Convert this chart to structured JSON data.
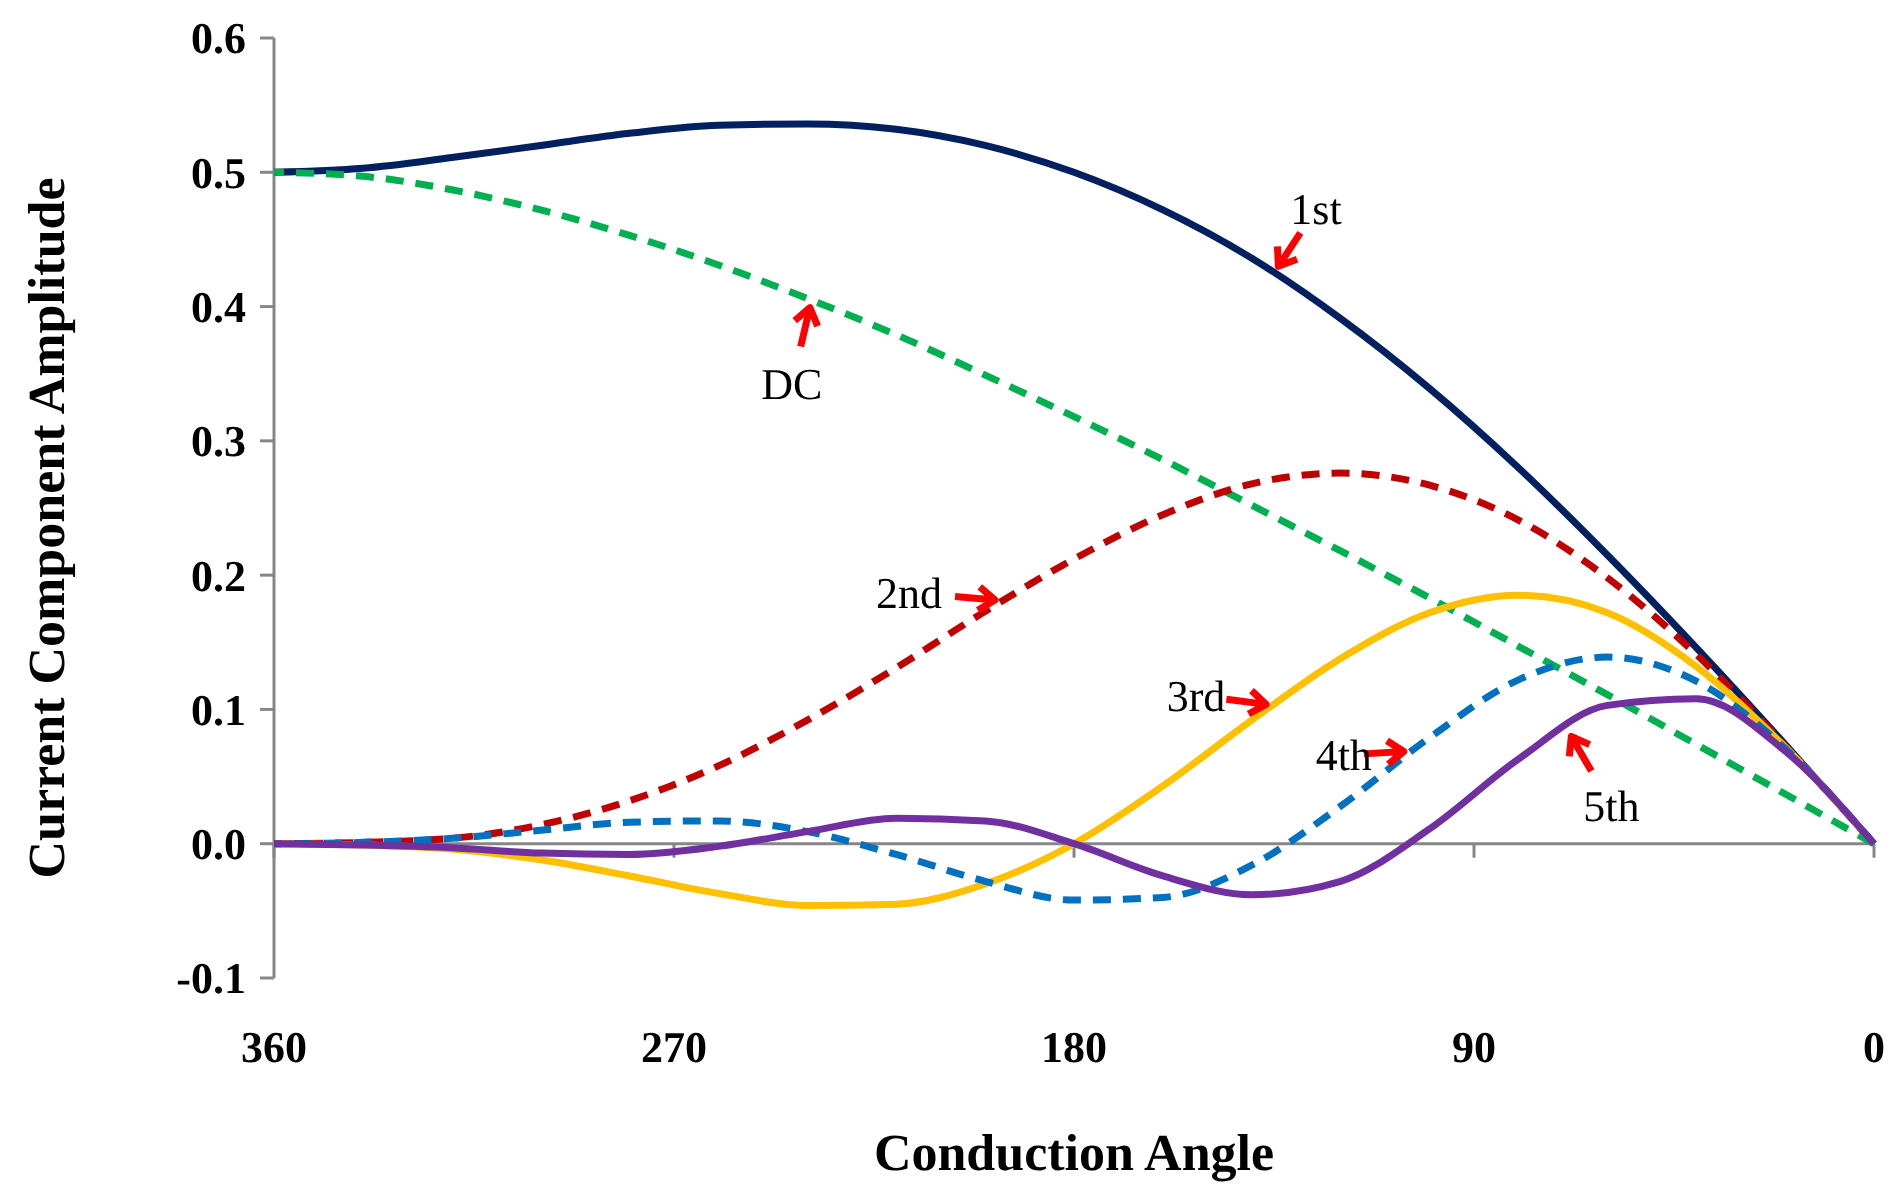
{
  "chart_data": {
    "type": "line",
    "xlabel": "Conduction Angle",
    "ylabel": "Current Component Amplitude",
    "x": [
      0,
      20,
      40,
      60,
      80,
      100,
      120,
      140,
      160,
      180,
      200,
      220,
      240,
      260,
      280,
      300,
      320,
      340,
      360
    ],
    "xlim": [
      360,
      0
    ],
    "xticks": [
      360,
      270,
      180,
      90,
      0
    ],
    "ylim": [
      -0.1,
      0.6
    ],
    "yticks": [
      -0.1,
      {
        "value": 0,
        "label": "0.0"
      },
      0.1,
      0.2,
      0.3,
      0.4,
      0.5,
      0.6
    ],
    "series": [
      {
        "color": "#002060",
        "line_style": "solid",
        "values": [
          0,
          0.074,
          0.146,
          0.215,
          0.28,
          0.339,
          0.391,
          0.436,
          0.472,
          0.5,
          0.52,
          0.532,
          0.536,
          0.535,
          0.529,
          0.52,
          0.511,
          0.503,
          0.5
        ]
      },
      {
        "color": "#00b050",
        "line_style": "dashed",
        "values": [
          0,
          0.037,
          0.074,
          0.111,
          0.147,
          0.183,
          0.218,
          0.252,
          0.286,
          0.318,
          0.349,
          0.379,
          0.406,
          0.431,
          0.453,
          0.472,
          0.487,
          0.497,
          0.5
        ]
      },
      {
        "color": "#c00000",
        "line_style": "dashed",
        "values": [
          0,
          0.073,
          0.141,
          0.198,
          0.241,
          0.267,
          0.276,
          0.268,
          0.245,
          0.212,
          0.173,
          0.131,
          0.092,
          0.058,
          0.032,
          0.014,
          0.004,
          0.001,
          0
        ]
      },
      {
        "color": "#ffc000",
        "line_style": "solid",
        "values": [
          0,
          0.072,
          0.132,
          0.172,
          0.185,
          0.172,
          0.138,
          0.092,
          0.043,
          0,
          -0.03,
          -0.045,
          -0.046,
          -0.037,
          -0.024,
          -0.012,
          -0.004,
          -0.001,
          0
        ]
      },
      {
        "color": "#0070c0",
        "line_style": "dashed",
        "values": [
          0,
          0.071,
          0.121,
          0.139,
          0.122,
          0.079,
          0.028,
          -0.016,
          -0.04,
          -0.042,
          -0.028,
          -0.008,
          0.009,
          0.017,
          0.016,
          0.01,
          0.004,
          0.001,
          0
        ]
      },
      {
        "color": "#7030a0",
        "line_style": "solid",
        "values": [
          0,
          0.069,
          0.108,
          0.103,
          0.063,
          0.011,
          -0.028,
          -0.038,
          -0.024,
          0,
          0.017,
          0.019,
          0.009,
          -0.002,
          -0.008,
          -0.007,
          -0.003,
          -0.001,
          0
        ]
      }
    ],
    "annotations": [
      {
        "text": "1st",
        "x": 135,
        "y": 0.425
      },
      {
        "text": "DC",
        "x": 239,
        "y": 0.405
      },
      {
        "text": "2nd",
        "x": 196,
        "y": 0.181
      },
      {
        "text": "3rd",
        "x": 135,
        "y": 0.103
      },
      {
        "text": "4th",
        "x": 104,
        "y": 0.069
      },
      {
        "text": "5th",
        "x": 69,
        "y": 0.085
      }
    ]
  }
}
